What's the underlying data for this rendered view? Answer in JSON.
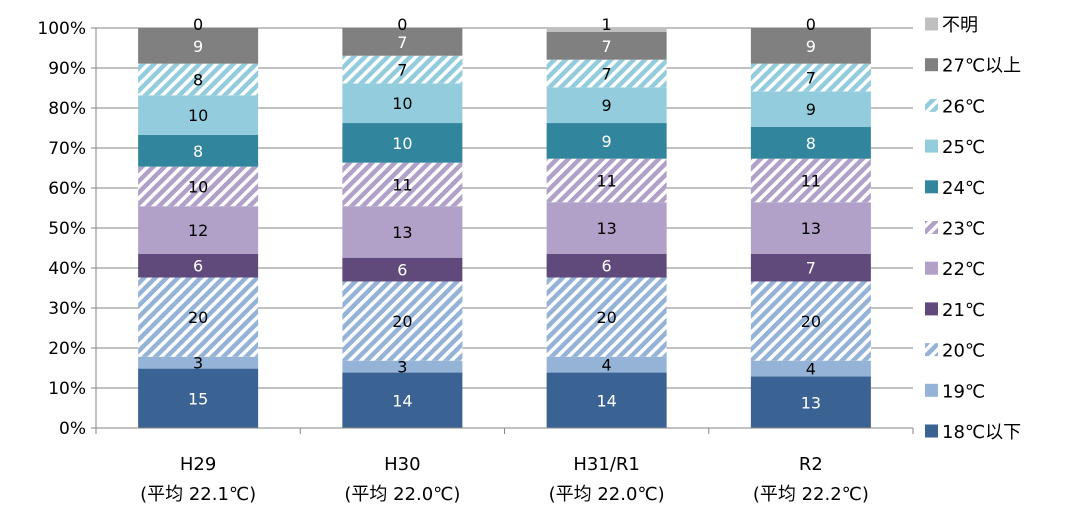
{
  "chart_data": {
    "type": "bar",
    "stacked": true,
    "normalized_percent": true,
    "categories": [
      "H29",
      "H30",
      "H31/R1",
      "R2"
    ],
    "category_sublabels": [
      "(平均 22.1℃)",
      "(平均 22.0℃)",
      "(平均 22.0℃)",
      "(平均 22.2℃)"
    ],
    "y_ticks": [
      "0%",
      "10%",
      "20%",
      "30%",
      "40%",
      "50%",
      "60%",
      "70%",
      "80%",
      "90%",
      "100%"
    ],
    "ylim": [
      0,
      100
    ],
    "grid": true,
    "legend_position": "right",
    "series": [
      {
        "name": "18℃以下",
        "values": [
          15,
          14,
          14,
          13
        ],
        "color": "#3a6293",
        "pattern": "solid",
        "label_color": "#ffffff"
      },
      {
        "name": "19℃",
        "values": [
          3,
          3,
          4,
          4
        ],
        "color": "#95b3d7",
        "pattern": "solid",
        "label_color": "#000000"
      },
      {
        "name": "20℃",
        "values": [
          20,
          20,
          20,
          20
        ],
        "color": "#95b3d7",
        "pattern": "hatch",
        "label_color": "#000000"
      },
      {
        "name": "21℃",
        "values": [
          6,
          6,
          6,
          7
        ],
        "color": "#604a7b",
        "pattern": "solid",
        "label_color": "#ffffff"
      },
      {
        "name": "22℃",
        "values": [
          12,
          13,
          13,
          13
        ],
        "color": "#b1a0c7",
        "pattern": "solid",
        "label_color": "#000000"
      },
      {
        "name": "23℃",
        "values": [
          10,
          11,
          11,
          11
        ],
        "color": "#b1a0c7",
        "pattern": "hatch",
        "label_color": "#000000"
      },
      {
        "name": "24℃",
        "values": [
          8,
          10,
          9,
          8
        ],
        "color": "#31859c",
        "pattern": "solid",
        "label_color": "#ffffff"
      },
      {
        "name": "25℃",
        "values": [
          10,
          10,
          9,
          9
        ],
        "color": "#93cddd",
        "pattern": "solid",
        "label_color": "#000000"
      },
      {
        "name": "26℃",
        "values": [
          8,
          7,
          7,
          7
        ],
        "color": "#93cddd",
        "pattern": "hatch",
        "label_color": "#000000"
      },
      {
        "name": "27℃以上",
        "values": [
          9,
          7,
          7,
          9
        ],
        "color": "#808080",
        "pattern": "solid",
        "label_color": "#ffffff"
      },
      {
        "name": "不明",
        "values": [
          0,
          0,
          1,
          0
        ],
        "color": "#bfbfbf",
        "pattern": "solid",
        "label_color": "#000000"
      }
    ]
  }
}
